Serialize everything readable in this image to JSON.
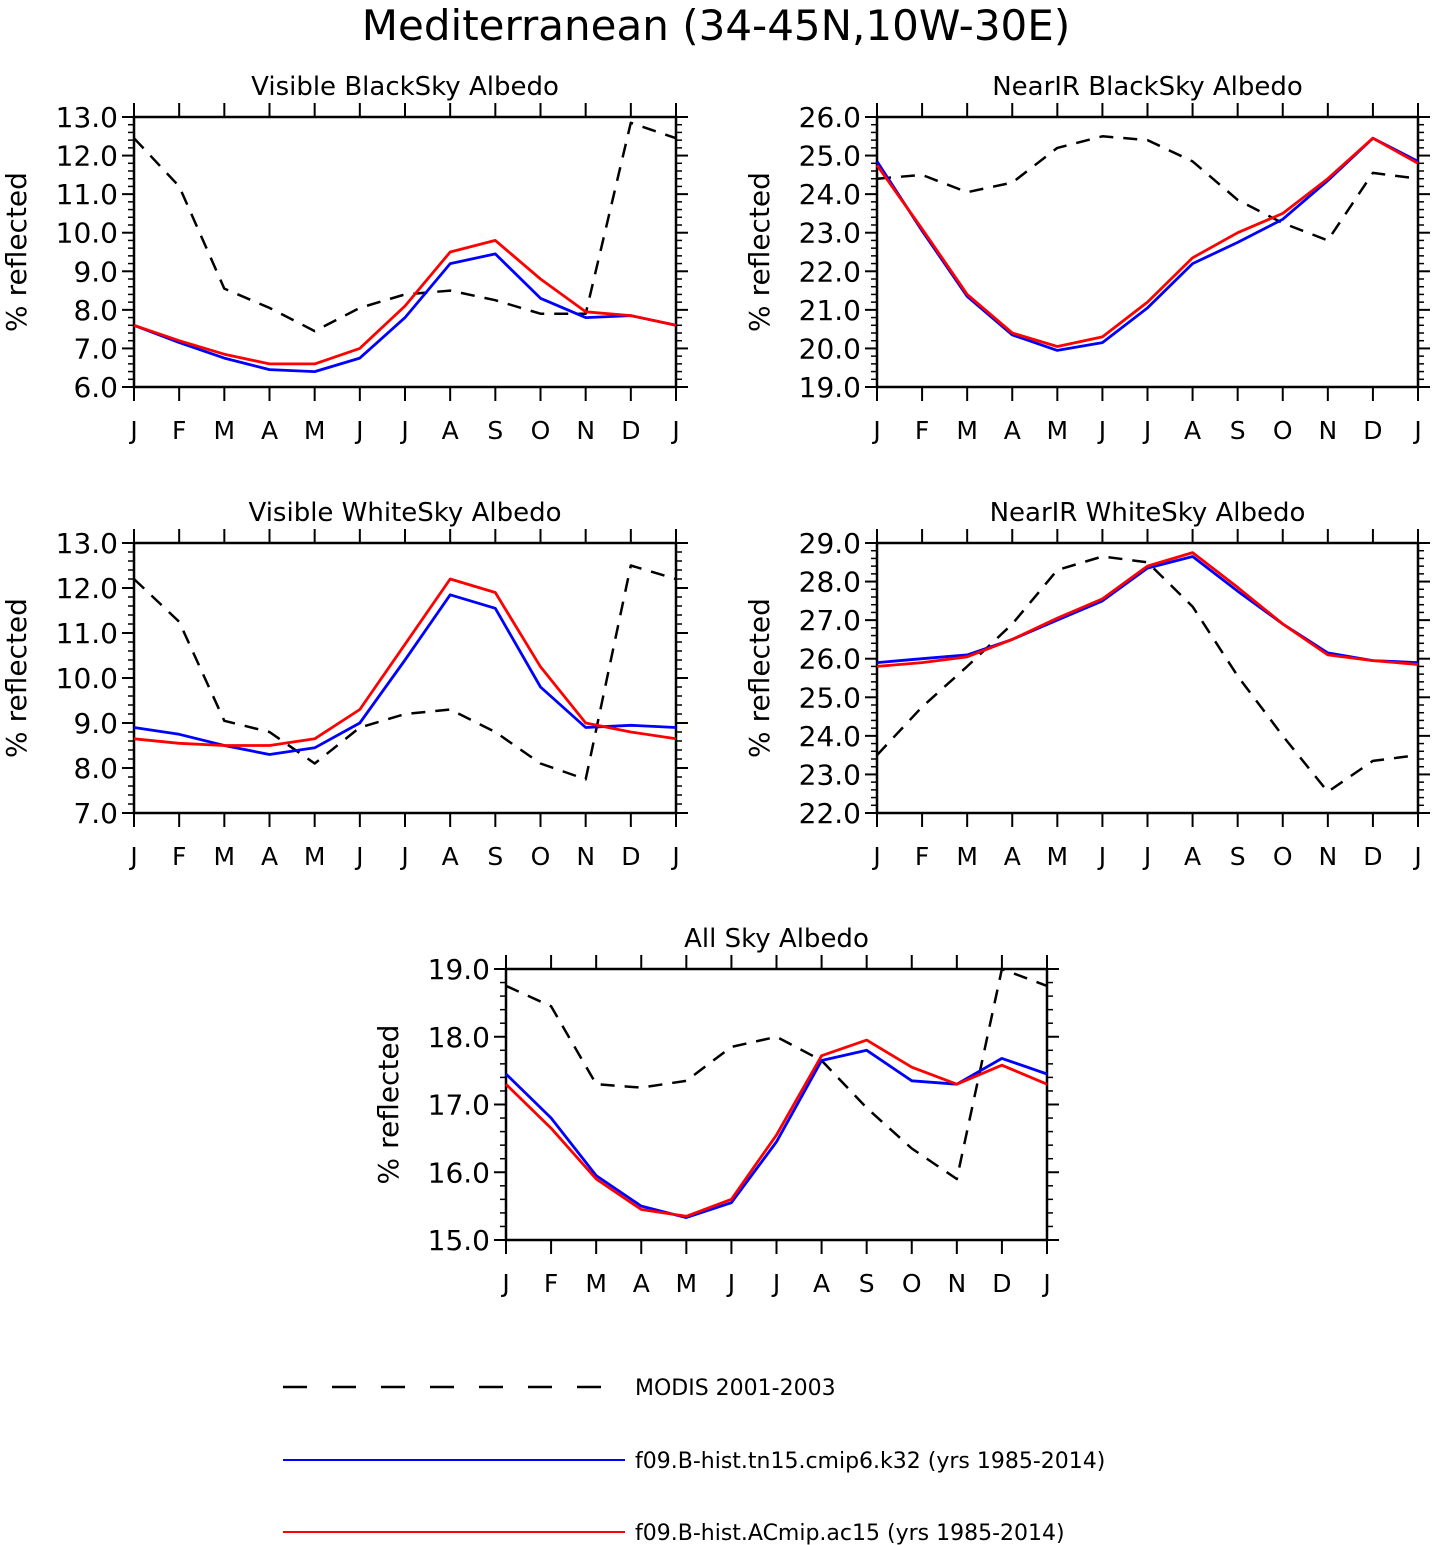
{
  "figure": {
    "title": "Mediterranean (34-45N,10W-30E)"
  },
  "colors": {
    "modis": "#000000",
    "k32": "#0000ff",
    "ac15": "#ff0000"
  },
  "legend": [
    {
      "key": "modis",
      "label": "MODIS 2001-2003",
      "style": "dashed"
    },
    {
      "key": "k32",
      "label": "f09.B-hist.tn15.cmip6.k32 (yrs 1985-2014)",
      "style": "solid"
    },
    {
      "key": "ac15",
      "label": "f09.B-hist.ACmip.ac15 (yrs 1985-2014)",
      "style": "solid"
    }
  ],
  "chart_data": [
    {
      "type": "line",
      "title": "Visible BlackSky Albedo",
      "ylabel": "% reflected",
      "ylim": [
        6,
        13
      ],
      "yticks": [
        "6.0",
        "7.0",
        "8.0",
        "9.0",
        "10.0",
        "11.0",
        "12.0",
        "13.0"
      ],
      "categories": [
        "J",
        "F",
        "M",
        "A",
        "M",
        "J",
        "J",
        "A",
        "S",
        "O",
        "N",
        "D",
        "J"
      ],
      "series": [
        {
          "key": "modis",
          "name": "MODIS 2001-2003",
          "values": [
            12.45,
            11.2,
            8.55,
            8.05,
            7.45,
            8.05,
            8.4,
            8.5,
            8.25,
            7.9,
            7.9,
            12.85,
            12.45
          ]
        },
        {
          "key": "k32",
          "name": "f09.B-hist.tn15.cmip6.k32 (yrs 1985-2014)",
          "values": [
            7.6,
            7.15,
            6.75,
            6.45,
            6.4,
            6.75,
            7.8,
            9.2,
            9.45,
            8.3,
            7.8,
            7.85,
            7.6
          ]
        },
        {
          "key": "ac15",
          "name": "f09.B-hist.ACmip.ac15 (yrs 1985-2014)",
          "values": [
            7.6,
            7.2,
            6.85,
            6.6,
            6.6,
            7.0,
            8.1,
            9.5,
            9.8,
            8.8,
            7.95,
            7.85,
            7.6
          ]
        }
      ]
    },
    {
      "type": "line",
      "title": "NearIR BlackSky Albedo",
      "ylabel": "% reflected",
      "ylim": [
        19,
        26
      ],
      "yticks": [
        "19.0",
        "20.0",
        "21.0",
        "22.0",
        "23.0",
        "24.0",
        "25.0",
        "26.0"
      ],
      "categories": [
        "J",
        "F",
        "M",
        "A",
        "M",
        "J",
        "J",
        "A",
        "S",
        "O",
        "N",
        "D",
        "J"
      ],
      "series": [
        {
          "key": "modis",
          "name": "MODIS 2001-2003",
          "values": [
            24.4,
            24.5,
            24.05,
            24.3,
            25.2,
            25.5,
            25.4,
            24.85,
            23.85,
            23.25,
            22.8,
            24.55,
            24.4
          ]
        },
        {
          "key": "k32",
          "name": "f09.B-hist.tn15.cmip6.k32 (yrs 1985-2014)",
          "values": [
            24.85,
            23.05,
            21.35,
            20.35,
            19.95,
            20.15,
            21.05,
            22.2,
            22.75,
            23.35,
            24.35,
            25.45,
            24.85
          ]
        },
        {
          "key": "ac15",
          "name": "f09.B-hist.ACmip.ac15 (yrs 1985-2014)",
          "values": [
            24.75,
            23.1,
            21.4,
            20.4,
            20.05,
            20.3,
            21.2,
            22.35,
            23.0,
            23.5,
            24.4,
            25.45,
            24.8
          ]
        }
      ]
    },
    {
      "type": "line",
      "title": "Visible WhiteSky Albedo",
      "ylabel": "% reflected",
      "ylim": [
        7,
        13
      ],
      "yticks": [
        "7.0",
        "8.0",
        "9.0",
        "10.0",
        "11.0",
        "12.0",
        "13.0"
      ],
      "categories": [
        "J",
        "F",
        "M",
        "A",
        "M",
        "J",
        "J",
        "A",
        "S",
        "O",
        "N",
        "D",
        "J"
      ],
      "series": [
        {
          "key": "modis",
          "name": "MODIS 2001-2003",
          "values": [
            12.2,
            11.25,
            9.05,
            8.8,
            8.1,
            8.9,
            9.2,
            9.3,
            8.8,
            8.1,
            7.75,
            12.5,
            12.2
          ]
        },
        {
          "key": "k32",
          "name": "f09.B-hist.tn15.cmip6.k32 (yrs 1985-2014)",
          "values": [
            8.9,
            8.75,
            8.5,
            8.3,
            8.45,
            9.0,
            10.4,
            11.85,
            11.55,
            9.8,
            8.9,
            8.95,
            8.9
          ]
        },
        {
          "key": "ac15",
          "name": "f09.B-hist.ACmip.ac15 (yrs 1985-2014)",
          "values": [
            8.65,
            8.55,
            8.5,
            8.5,
            8.65,
            9.3,
            10.75,
            12.2,
            11.9,
            10.25,
            9.0,
            8.8,
            8.65
          ]
        }
      ]
    },
    {
      "type": "line",
      "title": "NearIR WhiteSky Albedo",
      "ylabel": "% reflected",
      "ylim": [
        22,
        29
      ],
      "yticks": [
        "22.0",
        "23.0",
        "24.0",
        "25.0",
        "26.0",
        "27.0",
        "28.0",
        "29.0"
      ],
      "categories": [
        "J",
        "F",
        "M",
        "A",
        "M",
        "J",
        "J",
        "A",
        "S",
        "O",
        "N",
        "D",
        "J"
      ],
      "series": [
        {
          "key": "modis",
          "name": "MODIS 2001-2003",
          "values": [
            23.5,
            24.75,
            25.8,
            26.9,
            28.3,
            28.65,
            28.5,
            27.35,
            25.55,
            24.0,
            22.55,
            23.35,
            23.5
          ]
        },
        {
          "key": "k32",
          "name": "f09.B-hist.tn15.cmip6.k32 (yrs 1985-2014)",
          "values": [
            25.9,
            26.0,
            26.1,
            26.5,
            27.0,
            27.5,
            28.35,
            28.65,
            27.75,
            26.9,
            26.15,
            25.95,
            25.9
          ]
        },
        {
          "key": "ac15",
          "name": "f09.B-hist.ACmip.ac15 (yrs 1985-2014)",
          "values": [
            25.8,
            25.9,
            26.05,
            26.5,
            27.05,
            27.55,
            28.4,
            28.75,
            27.85,
            26.9,
            26.1,
            25.95,
            25.85
          ]
        }
      ]
    },
    {
      "type": "line",
      "title": "All Sky Albedo",
      "ylabel": "% reflected",
      "ylim": [
        15,
        19
      ],
      "yticks": [
        "15.0",
        "16.0",
        "17.0",
        "18.0",
        "19.0"
      ],
      "categories": [
        "J",
        "F",
        "M",
        "A",
        "M",
        "J",
        "J",
        "A",
        "S",
        "O",
        "N",
        "D",
        "J"
      ],
      "series": [
        {
          "key": "modis",
          "name": "MODIS 2001-2003",
          "values": [
            18.75,
            18.45,
            17.3,
            17.25,
            17.35,
            17.85,
            18.0,
            17.65,
            16.95,
            16.35,
            15.9,
            19.0,
            18.75
          ]
        },
        {
          "key": "k32",
          "name": "f09.B-hist.tn15.cmip6.k32 (yrs 1985-2014)",
          "values": [
            17.45,
            16.8,
            15.95,
            15.5,
            15.33,
            15.55,
            16.45,
            17.65,
            17.8,
            17.35,
            17.3,
            17.68,
            17.45
          ]
        },
        {
          "key": "ac15",
          "name": "f09.B-hist.ACmip.ac15 (yrs 1985-2014)",
          "values": [
            17.3,
            16.65,
            15.9,
            15.45,
            15.35,
            15.6,
            16.55,
            17.72,
            17.95,
            17.55,
            17.3,
            17.58,
            17.3
          ]
        }
      ]
    }
  ]
}
